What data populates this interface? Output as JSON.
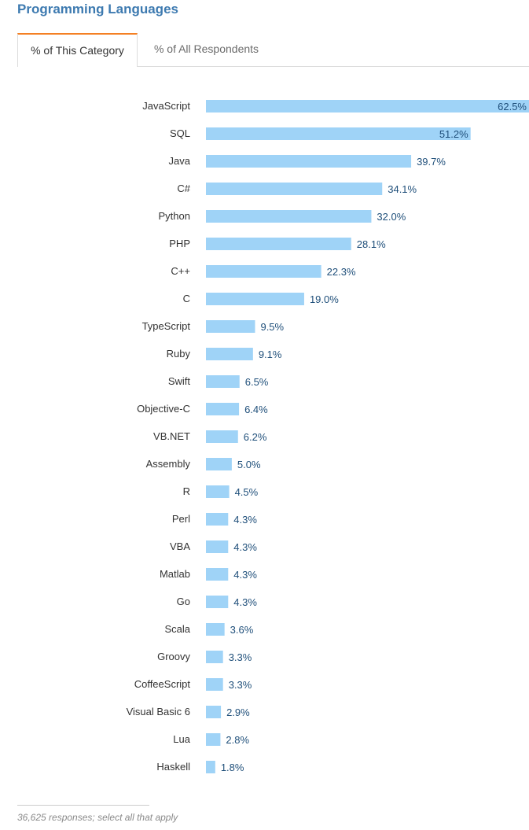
{
  "title": "Programming Languages",
  "tabs": [
    {
      "label": "% of This Category",
      "active": true
    },
    {
      "label": "% of All Respondents",
      "active": false
    }
  ],
  "footnote": "36,625 responses; select all that apply",
  "colors": {
    "bar": "#9fd3f7",
    "title": "#3d7ab0",
    "tab_accent": "#f48024",
    "value_text": "#1f4f7a"
  },
  "chart_data": {
    "type": "bar",
    "orientation": "horizontal",
    "categories": [
      "JavaScript",
      "SQL",
      "Java",
      "C#",
      "Python",
      "PHP",
      "C++",
      "C",
      "TypeScript",
      "Ruby",
      "Swift",
      "Objective-C",
      "VB.NET",
      "Assembly",
      "R",
      "Perl",
      "VBA",
      "Matlab",
      "Go",
      "Scala",
      "Groovy",
      "CoffeeScript",
      "Visual Basic 6",
      "Lua",
      "Haskell"
    ],
    "values": [
      62.5,
      51.2,
      39.7,
      34.1,
      32.0,
      28.1,
      22.3,
      19.0,
      9.5,
      9.1,
      6.5,
      6.4,
      6.2,
      5.0,
      4.5,
      4.3,
      4.3,
      4.3,
      4.3,
      3.6,
      3.3,
      3.3,
      2.9,
      2.8,
      1.8
    ],
    "value_labels": [
      "62.5%",
      "51.2%",
      "39.7%",
      "34.1%",
      "32.0%",
      "28.1%",
      "22.3%",
      "19.0%",
      "9.5%",
      "9.1%",
      "6.5%",
      "6.4%",
      "6.2%",
      "5.0%",
      "4.5%",
      "4.3%",
      "4.3%",
      "4.3%",
      "4.3%",
      "3.6%",
      "3.3%",
      "3.3%",
      "2.9%",
      "2.8%",
      "1.8%"
    ],
    "unit": "%",
    "xlim": [
      0,
      62.5
    ],
    "grid": false,
    "legend": "none"
  }
}
